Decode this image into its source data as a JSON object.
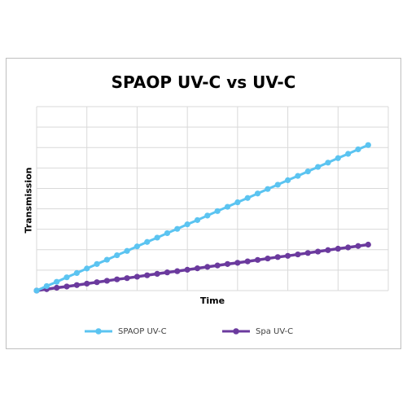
{
  "chart_data": {
    "type": "line",
    "title": "SPAOP UV-C vs UV-C",
    "xlabel": "Time",
    "ylabel": "Transmission",
    "x": [
      1,
      2,
      3,
      4,
      5,
      6,
      7,
      8,
      9,
      10,
      11,
      12,
      13,
      14,
      15,
      16,
      17,
      18,
      19,
      20,
      21,
      22,
      23,
      24,
      25,
      26,
      27,
      28,
      29,
      30,
      31,
      32,
      33,
      34
    ],
    "ylim": [
      0,
      9
    ],
    "grid": true,
    "legend_position": "bottom",
    "series": [
      {
        "name": "SPAOP UV-C",
        "color": "#5bc4f1",
        "values": [
          0.0,
          0.22,
          0.43,
          0.65,
          0.86,
          1.08,
          1.3,
          1.51,
          1.73,
          1.94,
          2.16,
          2.38,
          2.59,
          2.81,
          3.02,
          3.24,
          3.45,
          3.67,
          3.89,
          4.1,
          4.32,
          4.53,
          4.75,
          4.97,
          5.18,
          5.4,
          5.61,
          5.83,
          6.05,
          6.26,
          6.48,
          6.69,
          6.91,
          7.12
        ]
      },
      {
        "name": "Spa UV-C",
        "color": "#6b3a9e",
        "values": [
          0.0,
          0.07,
          0.14,
          0.2,
          0.27,
          0.34,
          0.41,
          0.48,
          0.55,
          0.61,
          0.68,
          0.75,
          0.82,
          0.89,
          0.95,
          1.02,
          1.09,
          1.16,
          1.23,
          1.3,
          1.36,
          1.43,
          1.5,
          1.57,
          1.64,
          1.7,
          1.77,
          1.84,
          1.91,
          1.98,
          2.05,
          2.11,
          2.18,
          2.25
        ]
      }
    ]
  }
}
